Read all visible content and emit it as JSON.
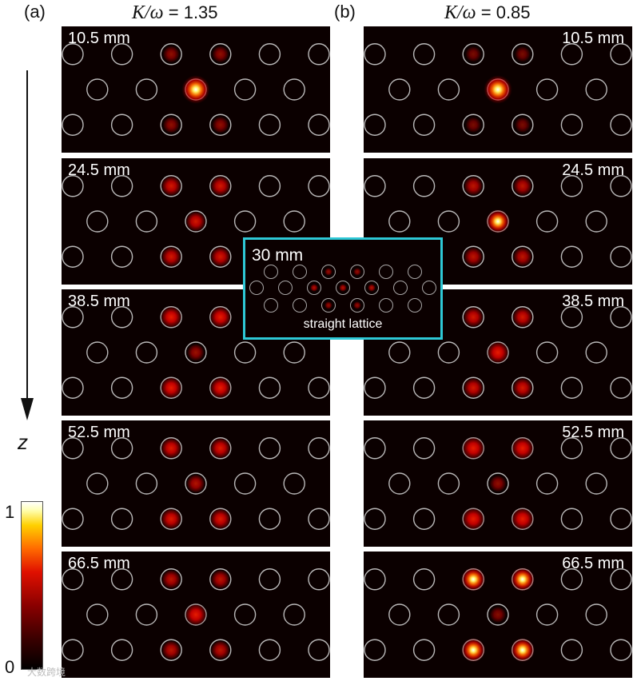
{
  "columns": [
    {
      "label": "(a)",
      "ratio_symbol": "K/ω",
      "ratio_value": "1.35"
    },
    {
      "label": "(b)",
      "ratio_symbol": "K/ω",
      "ratio_value": "0.85"
    }
  ],
  "axis": {
    "label": "z"
  },
  "colorbar": {
    "max_label": "1",
    "min_label": "0",
    "colors": [
      "#000000",
      "#3a0000",
      "#8a0000",
      "#e01000",
      "#ff6a00",
      "#ffd000",
      "#ffffff"
    ]
  },
  "panels_a": [
    {
      "distance": "10.5 mm",
      "center": 1.0,
      "side": 0.25
    },
    {
      "distance": "24.5 mm",
      "center": 0.55,
      "side": 0.55
    },
    {
      "distance": "38.5 mm",
      "center": 0.3,
      "side": 0.65
    },
    {
      "distance": "52.5 mm",
      "center": 0.4,
      "side": 0.6
    },
    {
      "distance": "66.5 mm",
      "center": 0.7,
      "side": 0.45
    }
  ],
  "panels_b": [
    {
      "distance": "10.5 mm",
      "center": 1.0,
      "side": 0.15
    },
    {
      "distance": "24.5 mm",
      "center": 0.85,
      "side": 0.45
    },
    {
      "distance": "38.5 mm",
      "center": 0.7,
      "side": 0.55
    },
    {
      "distance": "52.5 mm",
      "center": 0.25,
      "side": 0.75
    },
    {
      "distance": "66.5 mm",
      "center": 0.2,
      "side": 0.85
    }
  ],
  "inset": {
    "distance": "30 mm",
    "caption": "straight lattice"
  },
  "watermark": "大数跨境"
}
